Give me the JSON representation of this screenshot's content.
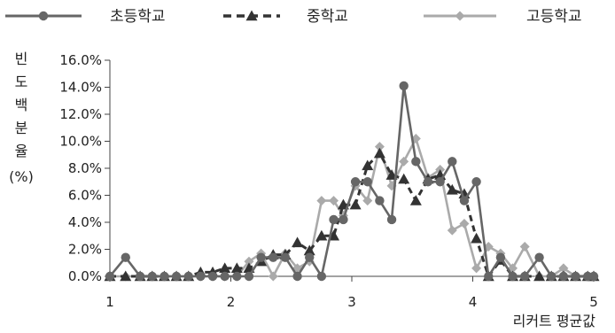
{
  "chart_data": {
    "type": "line",
    "title": "",
    "xlabel": "리커트 평균값",
    "ylabel_chars": [
      "빈",
      "도",
      "백",
      "분",
      "율"
    ],
    "ylabel_unit": "(%)",
    "xlim": [
      1,
      5
    ],
    "ylim": [
      0,
      16
    ],
    "x_ticks": [
      1,
      2,
      3,
      4,
      5
    ],
    "y_ticks": [
      "0.0%",
      "2.0%",
      "4.0%",
      "6.0%",
      "8.0%",
      "10.0%",
      "12.0%",
      "14.0%",
      "16.0%"
    ],
    "grid": false,
    "legend_position": "top",
    "series": [
      {
        "name": "초등학교",
        "color": "#666666",
        "marker": "circle",
        "line": "solid",
        "points": [
          [
            1.0,
            0
          ],
          [
            1.13,
            1.4
          ],
          [
            1.25,
            0
          ],
          [
            1.35,
            0
          ],
          [
            1.45,
            0
          ],
          [
            1.55,
            0
          ],
          [
            1.65,
            0
          ],
          [
            1.75,
            0
          ],
          [
            1.85,
            0
          ],
          [
            1.95,
            0
          ],
          [
            2.05,
            0
          ],
          [
            2.15,
            0
          ],
          [
            2.25,
            1.4
          ],
          [
            2.35,
            1.4
          ],
          [
            2.45,
            1.4
          ],
          [
            2.55,
            0
          ],
          [
            2.65,
            1.4
          ],
          [
            2.75,
            0
          ],
          [
            2.85,
            4.2
          ],
          [
            2.93,
            4.2
          ],
          [
            3.03,
            7.0
          ],
          [
            3.13,
            7.0
          ],
          [
            3.23,
            5.6
          ],
          [
            3.33,
            4.2
          ],
          [
            3.43,
            14.1
          ],
          [
            3.53,
            8.5
          ],
          [
            3.63,
            7.0
          ],
          [
            3.73,
            7.0
          ],
          [
            3.83,
            8.5
          ],
          [
            3.93,
            5.6
          ],
          [
            4.03,
            7.0
          ],
          [
            4.13,
            0
          ],
          [
            4.23,
            1.4
          ],
          [
            4.33,
            0
          ],
          [
            4.43,
            0
          ],
          [
            4.55,
            1.4
          ],
          [
            4.65,
            0
          ],
          [
            4.75,
            0
          ],
          [
            4.85,
            0
          ],
          [
            4.95,
            0
          ],
          [
            5.0,
            0
          ]
        ]
      },
      {
        "name": "중학교",
        "color": "#333333",
        "marker": "triangle",
        "line": "dashed",
        "points": [
          [
            1.0,
            0
          ],
          [
            1.13,
            0
          ],
          [
            1.25,
            0
          ],
          [
            1.35,
            0
          ],
          [
            1.45,
            0
          ],
          [
            1.55,
            0
          ],
          [
            1.65,
            0
          ],
          [
            1.75,
            0.3
          ],
          [
            1.85,
            0.3
          ],
          [
            1.95,
            0.6
          ],
          [
            2.05,
            0.6
          ],
          [
            2.15,
            0.6
          ],
          [
            2.25,
            1.1
          ],
          [
            2.35,
            1.6
          ],
          [
            2.45,
            1.6
          ],
          [
            2.55,
            2.5
          ],
          [
            2.65,
            1.9
          ],
          [
            2.75,
            3.0
          ],
          [
            2.85,
            3.0
          ],
          [
            2.93,
            5.3
          ],
          [
            3.03,
            5.3
          ],
          [
            3.13,
            8.2
          ],
          [
            3.23,
            9.1
          ],
          [
            3.33,
            7.5
          ],
          [
            3.43,
            7.2
          ],
          [
            3.53,
            5.6
          ],
          [
            3.63,
            7.2
          ],
          [
            3.73,
            7.5
          ],
          [
            3.83,
            6.4
          ],
          [
            3.93,
            6.1
          ],
          [
            4.03,
            2.8
          ],
          [
            4.13,
            0
          ],
          [
            4.23,
            1.2
          ],
          [
            4.33,
            0
          ],
          [
            4.43,
            0
          ],
          [
            4.55,
            0
          ],
          [
            4.65,
            0
          ],
          [
            4.75,
            0
          ],
          [
            4.85,
            0
          ],
          [
            4.95,
            0
          ],
          [
            5.0,
            0
          ]
        ]
      },
      {
        "name": "고등학교",
        "color": "#aaaaaa",
        "marker": "diamond",
        "line": "solid",
        "points": [
          [
            1.0,
            0
          ],
          [
            1.13,
            0
          ],
          [
            1.25,
            0
          ],
          [
            1.35,
            0
          ],
          [
            1.45,
            0
          ],
          [
            1.55,
            0
          ],
          [
            1.65,
            0
          ],
          [
            1.75,
            0
          ],
          [
            1.85,
            0
          ],
          [
            1.95,
            0
          ],
          [
            2.05,
            0
          ],
          [
            2.15,
            1.1
          ],
          [
            2.25,
            1.7
          ],
          [
            2.35,
            0
          ],
          [
            2.45,
            1.7
          ],
          [
            2.55,
            0.6
          ],
          [
            2.65,
            1.1
          ],
          [
            2.75,
            5.6
          ],
          [
            2.85,
            5.6
          ],
          [
            2.93,
            4.5
          ],
          [
            3.03,
            6.7
          ],
          [
            3.13,
            5.6
          ],
          [
            3.23,
            9.6
          ],
          [
            3.33,
            6.7
          ],
          [
            3.43,
            8.5
          ],
          [
            3.53,
            10.2
          ],
          [
            3.63,
            7.3
          ],
          [
            3.73,
            7.9
          ],
          [
            3.83,
            3.4
          ],
          [
            3.93,
            3.9
          ],
          [
            4.03,
            0.6
          ],
          [
            4.13,
            2.2
          ],
          [
            4.23,
            1.7
          ],
          [
            4.33,
            0.6
          ],
          [
            4.43,
            2.2
          ],
          [
            4.55,
            0
          ],
          [
            4.65,
            0
          ],
          [
            4.75,
            0.6
          ],
          [
            4.85,
            0
          ],
          [
            4.95,
            0
          ],
          [
            5.0,
            0
          ]
        ]
      }
    ]
  }
}
